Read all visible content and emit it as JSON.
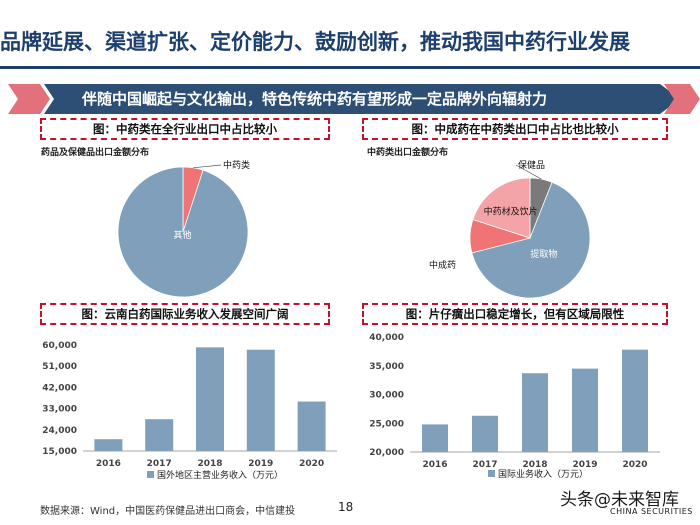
{
  "page": {
    "title": "品牌延展、渠道扩张、定价能力、鼓励创新，推动我国中药行业发展",
    "banner": "伴随中国崛起与文化输出，特色传统中药有望形成一定品牌外向辐射力",
    "source": "数据来源：Wind，中国医药保健品进出口商会，中信建投",
    "page_number": "18",
    "watermark": "头条@未来智库",
    "watermark_sub": "CHINA SECURITIES"
  },
  "colors": {
    "title": "#1d3f6e",
    "banner_main": "#2d4f75",
    "banner_accent": "#e3717b",
    "bar": "#7f9fba",
    "pie_main": "#7f9fba",
    "pie_red": "#f07475",
    "pie_pink": "#f4a3a7",
    "pie_gray": "#7a7a7a",
    "caption_border": "#c8102e"
  },
  "captions": {
    "top_left": "图：中药类在全行业出口中占比较小",
    "top_right": "图：中成药在中药类出口中占比也比较小",
    "bottom_left": "图：云南白药国际业务收入发展空间广阔",
    "bottom_right": "图：片仔癀出口稳定增长，但有区域局限性"
  },
  "chart_data": [
    {
      "type": "pie",
      "title": "药品及保健品出口金额分布",
      "slices": [
        {
          "label": "中药类",
          "value": 5
        },
        {
          "label": "其他",
          "value": 95
        }
      ]
    },
    {
      "type": "pie",
      "title": "中药类出口金额分布",
      "slices": [
        {
          "label": "保健品",
          "value": 6
        },
        {
          "label": "提取物",
          "value": 65
        },
        {
          "label": "中成药",
          "value": 9
        },
        {
          "label": "中药材及饮片",
          "value": 20
        }
      ]
    },
    {
      "type": "bar",
      "categories": [
        "2016",
        "2017",
        "2018",
        "2019",
        "2020"
      ],
      "series": [
        {
          "name": "国外地区主营业务收入（万元）",
          "values": [
            20000,
            28500,
            59000,
            58000,
            36000
          ]
        }
      ],
      "yticks": [
        "15,000",
        "24,000",
        "33,000",
        "42,000",
        "51,000",
        "60,000"
      ],
      "ylim": [
        15000,
        60000
      ]
    },
    {
      "type": "bar",
      "categories": [
        "2016",
        "2017",
        "2018",
        "2019",
        "2020"
      ],
      "series": [
        {
          "name": "国际业务收入（万元）",
          "values": [
            24800,
            26300,
            33700,
            34500,
            37800
          ]
        }
      ],
      "yticks": [
        "20,000",
        "25,000",
        "30,000",
        "35,000",
        "40,000"
      ],
      "ylim": [
        20000,
        40000
      ]
    }
  ]
}
